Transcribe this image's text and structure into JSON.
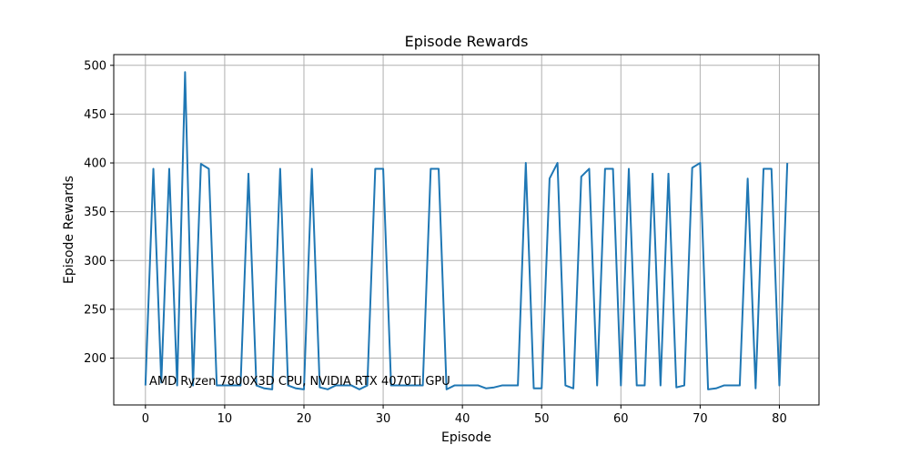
{
  "chart_data": {
    "type": "line",
    "title": "Episode Rewards",
    "xlabel": "Episode",
    "ylabel": "Episode Rewards",
    "xlim": [
      -4,
      85
    ],
    "ylim": [
      152,
      511
    ],
    "xticks": [
      0,
      10,
      20,
      30,
      40,
      50,
      60,
      70,
      80
    ],
    "yticks": [
      200,
      250,
      300,
      350,
      400,
      450,
      500
    ],
    "grid": true,
    "line_color": "#1f77b4",
    "annotation": "AMD Ryzen 7800X3D CPU, NVIDIA RTX 4070Ti GPU",
    "series": [
      {
        "x": [
          0,
          1,
          2,
          3,
          4,
          5,
          6,
          7,
          8,
          9,
          10,
          11,
          12,
          13,
          14,
          15,
          16,
          17,
          18,
          19,
          20,
          21,
          22,
          23,
          24,
          25,
          26,
          27,
          28,
          29,
          30,
          31,
          32,
          33,
          34,
          35,
          36,
          37,
          38,
          39,
          40,
          41,
          42,
          43,
          44,
          45,
          46,
          47,
          48,
          49,
          50,
          51,
          52,
          53,
          54,
          55,
          56,
          57,
          58,
          59,
          60,
          61,
          62,
          63,
          64,
          65,
          66,
          67,
          68,
          69,
          70,
          71,
          72,
          73,
          74,
          75,
          76,
          77,
          78,
          79,
          80,
          81
        ],
        "y": [
          172,
          394,
          175,
          394,
          172,
          493,
          172,
          399,
          394,
          172,
          172,
          172,
          172,
          389,
          172,
          169,
          168,
          394,
          172,
          169,
          168,
          394,
          170,
          168,
          172,
          172,
          172,
          168,
          172,
          394,
          394,
          172,
          172,
          172,
          172,
          172,
          394,
          394,
          168,
          172,
          172,
          172,
          172,
          169,
          170,
          172,
          172,
          172,
          400,
          169,
          169,
          384,
          400,
          172,
          169,
          386,
          394,
          172,
          394,
          394,
          172,
          394,
          172,
          172,
          389,
          172,
          389,
          170,
          172,
          395,
          400,
          168,
          169,
          172,
          172,
          172,
          384,
          169,
          394,
          394,
          172,
          400
        ]
      }
    ]
  }
}
